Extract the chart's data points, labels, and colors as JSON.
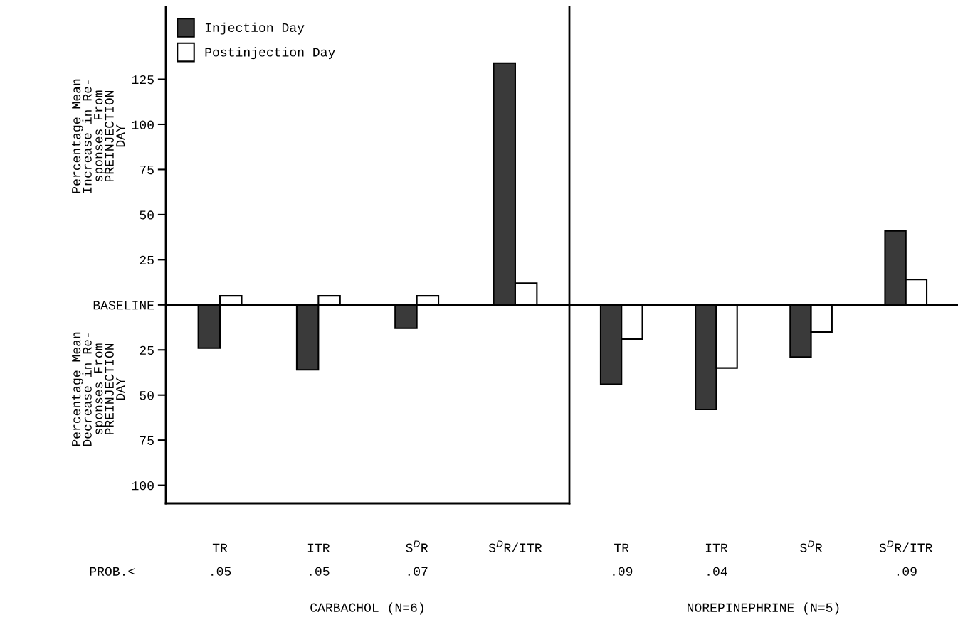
{
  "chart_data": [
    {
      "type": "bar",
      "ylabel": "Percentage Mean\nIncrease in Re-\nsponses From\nPREINJECTION\nDAY",
      "xlabel": "CARBACHOL (N=6)",
      "categories": [
        "TR",
        "ITR",
        "S$^{D}$R",
        "S$^{D}$R/ITR"
      ],
      "series": [
        {
          "name": "Injection Day",
          "color": "#3a3a3a",
          "values": [
            -24,
            -36,
            -13,
            134
          ]
        },
        {
          "name": "Postinjection Day",
          "color": "#ffffff",
          "values": [
            5,
            5,
            5,
            12
          ]
        }
      ],
      "ylim": [
        -110,
        165
      ],
      "yticks": [
        {
          "value": -100,
          "label": "100"
        },
        {
          "value": -75,
          "label": "75"
        },
        {
          "value": -50,
          "label": "50"
        },
        {
          "value": -25,
          "label": "25"
        },
        {
          "value": 0,
          "label": "BASELINE"
        },
        25,
        50,
        75,
        100,
        125
      ],
      "annotations": [
        "Percentage Mean\nDecrease in Re-\nsponses From\nPREINJECTION\nDAY",
        "PROB.<",
        ".05",
        ".05",
        ".07"
      ],
      "ref_lines": [
        {
          "axis": "y",
          "value": 0,
          "color": "#000000"
        }
      ],
      "legend": "top left",
      "grid": false
    },
    {
      "type": "bar",
      "xlabel": "NOREPINEPHRINE (N=5)",
      "categories": [
        "TR",
        "ITR",
        "S$^{D}$R",
        "S$^{D}$R/ITR"
      ],
      "series": [
        {
          "color": "#3a3a3a",
          "values": [
            -44,
            -58,
            -29,
            41
          ]
        },
        {
          "color": "#ffffff",
          "values": [
            -19,
            -35,
            -15,
            14
          ]
        }
      ],
      "ylim": [
        -110,
        165
      ],
      "tick_labels": "x",
      "annotations": [
        ".09",
        ".04",
        ".09"
      ],
      "ref_lines": [
        {
          "axis": "y",
          "value": 0,
          "color": "#000000"
        }
      ],
      "grid": false
    }
  ]
}
